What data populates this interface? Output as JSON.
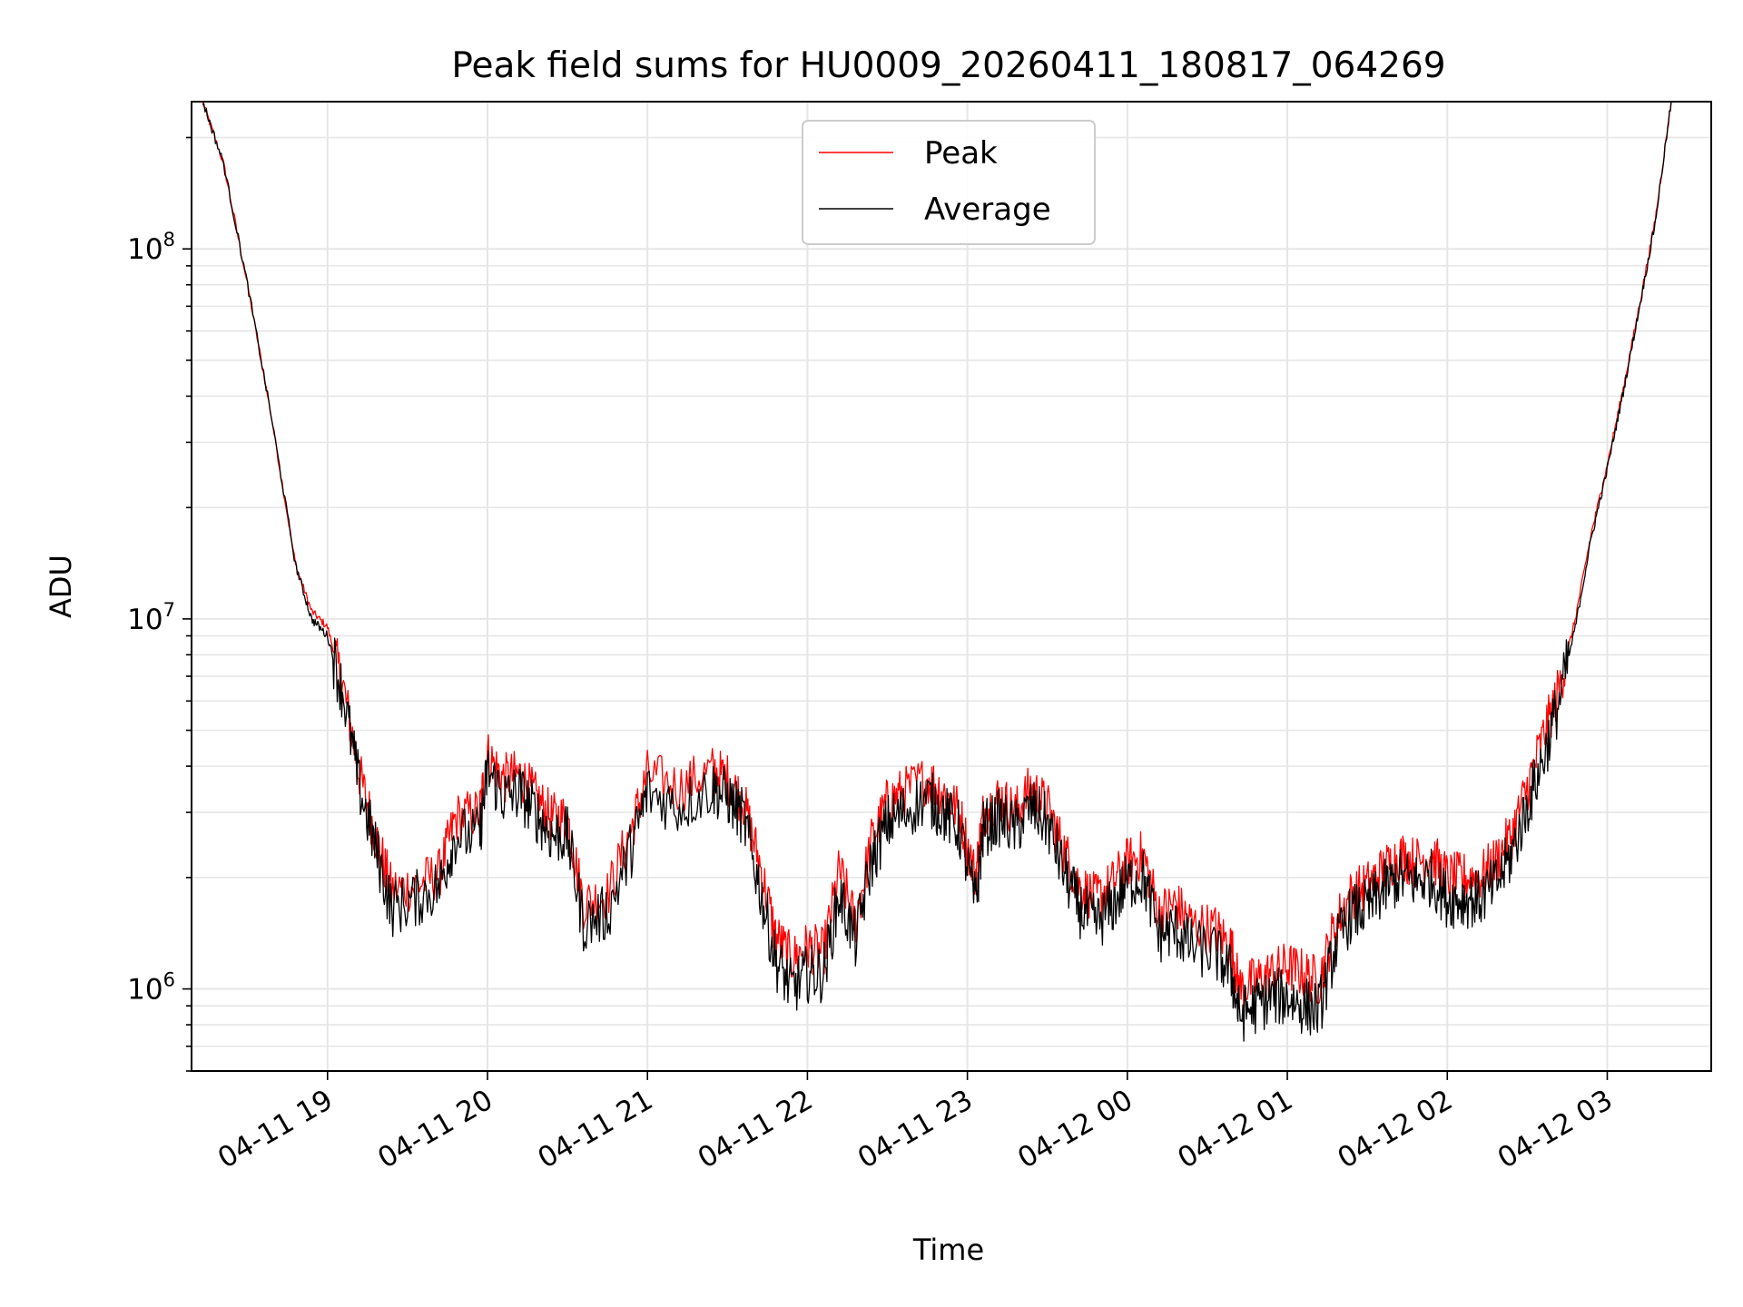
{
  "chart_data": {
    "type": "line",
    "title": "Peak field sums for HU0009_20260411_180817_064269",
    "xlabel": "Time",
    "ylabel": "ADU",
    "y_scale": "log",
    "ylim": [
      600000,
      250000000
    ],
    "x_range_hours": [
      18.15,
      3.65
    ],
    "x_ticks": [
      {
        "label": "04-11 19",
        "hour": 19
      },
      {
        "label": "04-11 20",
        "hour": 20
      },
      {
        "label": "04-11 21",
        "hour": 21
      },
      {
        "label": "04-11 22",
        "hour": 22
      },
      {
        "label": "04-11 23",
        "hour": 23
      },
      {
        "label": "04-12 00",
        "hour": 24
      },
      {
        "label": "04-12 01",
        "hour": 25
      },
      {
        "label": "04-12 02",
        "hour": 26
      },
      {
        "label": "04-12 03",
        "hour": 27
      }
    ],
    "y_ticks": [
      {
        "base": "10",
        "exp": "6",
        "value": 1000000
      },
      {
        "base": "10",
        "exp": "7",
        "value": 10000000
      },
      {
        "base": "10",
        "exp": "8",
        "value": 100000000
      }
    ],
    "grid": true,
    "legend_position": "top-center",
    "series": [
      {
        "name": "Peak",
        "color": "#ff0000",
        "points": [
          [
            18.22,
            250000000
          ],
          [
            18.35,
            170000000
          ],
          [
            18.5,
            80000000
          ],
          [
            18.65,
            35000000
          ],
          [
            18.8,
            14000000
          ],
          [
            18.9,
            10500000
          ],
          [
            19.0,
            9500000
          ],
          [
            19.1,
            6500000
          ],
          [
            19.2,
            3800000
          ],
          [
            19.3,
            2600000
          ],
          [
            19.4,
            1850000
          ],
          [
            19.55,
            1900000
          ],
          [
            19.7,
            2050000
          ],
          [
            19.8,
            2900000
          ],
          [
            19.95,
            3000000
          ],
          [
            20.0,
            4300000
          ],
          [
            20.1,
            3700000
          ],
          [
            20.2,
            3800000
          ],
          [
            20.3,
            3300000
          ],
          [
            20.4,
            2900000
          ],
          [
            20.5,
            2900000
          ],
          [
            20.6,
            1700000
          ],
          [
            20.75,
            1800000
          ],
          [
            20.9,
            2700000
          ],
          [
            21.0,
            3800000
          ],
          [
            21.2,
            3500000
          ],
          [
            21.4,
            3900000
          ],
          [
            21.5,
            3700000
          ],
          [
            21.6,
            3200000
          ],
          [
            21.7,
            2200000
          ],
          [
            21.8,
            1400000
          ],
          [
            21.9,
            1200000
          ],
          [
            22.0,
            1300000
          ],
          [
            22.1,
            1250000
          ],
          [
            22.2,
            2100000
          ],
          [
            22.3,
            1500000
          ],
          [
            22.4,
            2500000
          ],
          [
            22.5,
            3200000
          ],
          [
            22.6,
            3400000
          ],
          [
            22.75,
            3700000
          ],
          [
            22.85,
            3400000
          ],
          [
            22.95,
            3000000
          ],
          [
            23.05,
            2000000
          ],
          [
            23.1,
            3000000
          ],
          [
            23.2,
            3300000
          ],
          [
            23.3,
            3000000
          ],
          [
            23.4,
            3500000
          ],
          [
            23.5,
            3100000
          ],
          [
            23.6,
            2400000
          ],
          [
            23.7,
            1900000
          ],
          [
            23.8,
            1750000
          ],
          [
            23.9,
            1900000
          ],
          [
            24.0,
            2200000
          ],
          [
            24.1,
            2300000
          ],
          [
            24.2,
            1600000
          ],
          [
            24.3,
            1700000
          ],
          [
            24.4,
            1500000
          ],
          [
            24.55,
            1450000
          ],
          [
            24.65,
            1300000
          ],
          [
            24.7,
            1000000
          ],
          [
            24.8,
            1050000
          ],
          [
            24.9,
            1100000
          ],
          [
            25.0,
            1150000
          ],
          [
            25.1,
            1100000
          ],
          [
            25.2,
            1050000
          ],
          [
            25.3,
            1500000
          ],
          [
            25.4,
            1800000
          ],
          [
            25.5,
            1900000
          ],
          [
            25.6,
            2100000
          ],
          [
            25.7,
            2300000
          ],
          [
            25.8,
            2200000
          ],
          [
            25.9,
            2300000
          ],
          [
            26.0,
            2000000
          ],
          [
            26.1,
            2000000
          ],
          [
            26.2,
            2000000
          ],
          [
            26.3,
            2200000
          ],
          [
            26.4,
            2600000
          ],
          [
            26.5,
            3500000
          ],
          [
            26.6,
            4800000
          ],
          [
            26.7,
            6500000
          ],
          [
            26.8,
            10000000
          ],
          [
            26.9,
            17000000
          ],
          [
            27.0,
            26000000
          ],
          [
            27.1,
            42000000
          ],
          [
            27.2,
            70000000
          ],
          [
            27.3,
            120000000
          ],
          [
            27.4,
            250000000
          ]
        ]
      },
      {
        "name": "Average",
        "color": "#000000",
        "points": [
          [
            18.22,
            250000000
          ],
          [
            18.35,
            170000000
          ],
          [
            18.5,
            80000000
          ],
          [
            18.65,
            35000000
          ],
          [
            18.8,
            14000000
          ],
          [
            18.9,
            10000000
          ],
          [
            19.0,
            9000000
          ],
          [
            19.1,
            6200000
          ],
          [
            19.2,
            3500000
          ],
          [
            19.3,
            2400000
          ],
          [
            19.4,
            1650000
          ],
          [
            19.55,
            1750000
          ],
          [
            19.7,
            1900000
          ],
          [
            19.8,
            2600000
          ],
          [
            19.95,
            2600000
          ],
          [
            20.0,
            3900000
          ],
          [
            20.1,
            3300000
          ],
          [
            20.2,
            3400000
          ],
          [
            20.3,
            3000000
          ],
          [
            20.4,
            2600000
          ],
          [
            20.5,
            2600000
          ],
          [
            20.6,
            1500000
          ],
          [
            20.75,
            1600000
          ],
          [
            20.9,
            2400000
          ],
          [
            21.0,
            3400000
          ],
          [
            21.2,
            3100000
          ],
          [
            21.4,
            3500000
          ],
          [
            21.5,
            3300000
          ],
          [
            21.6,
            2900000
          ],
          [
            21.7,
            1900000
          ],
          [
            21.8,
            1200000
          ],
          [
            21.9,
            1000000
          ],
          [
            22.0,
            1100000
          ],
          [
            22.1,
            1100000
          ],
          [
            22.2,
            1800000
          ],
          [
            22.3,
            1350000
          ],
          [
            22.4,
            2200000
          ],
          [
            22.5,
            2800000
          ],
          [
            22.6,
            3000000
          ],
          [
            22.75,
            3300000
          ],
          [
            22.85,
            3000000
          ],
          [
            22.95,
            2700000
          ],
          [
            23.05,
            1700000
          ],
          [
            23.1,
            2700000
          ],
          [
            23.2,
            2900000
          ],
          [
            23.3,
            2700000
          ],
          [
            23.4,
            3100000
          ],
          [
            23.5,
            2800000
          ],
          [
            23.6,
            2100000
          ],
          [
            23.7,
            1650000
          ],
          [
            23.8,
            1500000
          ],
          [
            23.9,
            1650000
          ],
          [
            24.0,
            1950000
          ],
          [
            24.1,
            2000000
          ],
          [
            24.2,
            1400000
          ],
          [
            24.3,
            1450000
          ],
          [
            24.4,
            1300000
          ],
          [
            24.55,
            1250000
          ],
          [
            24.65,
            1100000
          ],
          [
            24.7,
            850000
          ],
          [
            24.8,
            900000
          ],
          [
            24.9,
            950000
          ],
          [
            25.0,
            950000
          ],
          [
            25.1,
            900000
          ],
          [
            25.2,
            880000
          ],
          [
            25.3,
            1300000
          ],
          [
            25.4,
            1600000
          ],
          [
            25.5,
            1650000
          ],
          [
            25.6,
            1850000
          ],
          [
            25.7,
            2000000
          ],
          [
            25.8,
            1950000
          ],
          [
            25.9,
            2000000
          ],
          [
            26.0,
            1750000
          ],
          [
            26.1,
            1750000
          ],
          [
            26.2,
            1750000
          ],
          [
            26.3,
            1900000
          ],
          [
            26.4,
            2300000
          ],
          [
            26.5,
            3100000
          ],
          [
            26.6,
            4200000
          ],
          [
            26.7,
            6000000
          ],
          [
            26.8,
            9500000
          ],
          [
            26.9,
            16500000
          ],
          [
            27.0,
            25500000
          ],
          [
            27.1,
            41000000
          ],
          [
            27.2,
            69000000
          ],
          [
            27.3,
            118000000
          ],
          [
            27.4,
            250000000
          ]
        ]
      }
    ]
  }
}
